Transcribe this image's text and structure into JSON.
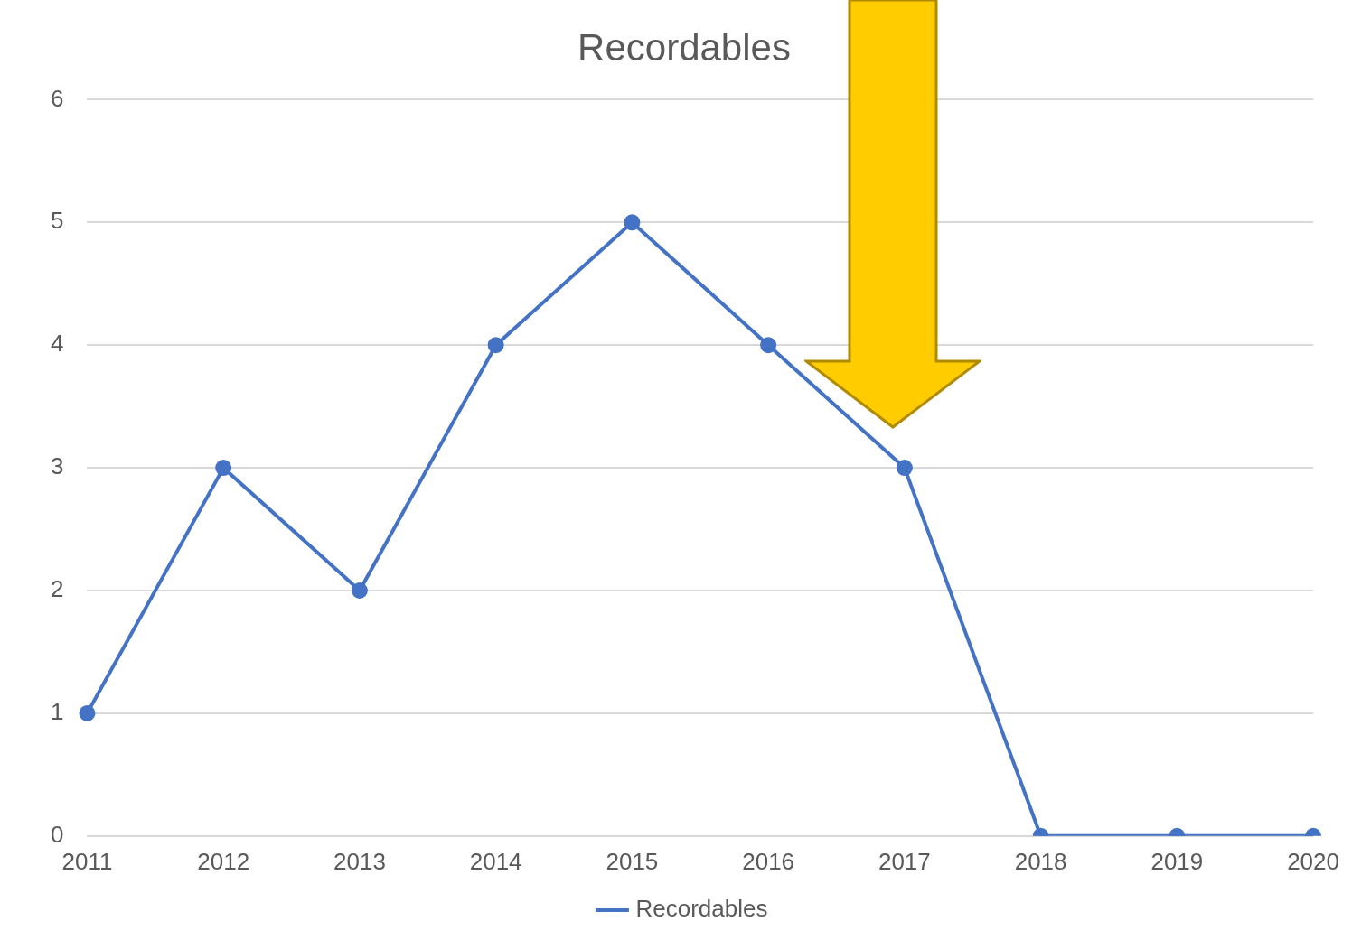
{
  "chart_data": {
    "type": "line",
    "title": "Recordables",
    "categories": [
      "2011",
      "2012",
      "2013",
      "2014",
      "2015",
      "2016",
      "2017",
      "2018",
      "2019",
      "2020"
    ],
    "series": [
      {
        "name": "Recordables",
        "color": "#4472c4",
        "values": [
          1,
          3,
          2,
          4,
          5,
          4,
          3,
          0,
          0,
          0
        ]
      }
    ],
    "ylim": [
      0,
      6
    ],
    "yticks": [
      0,
      1,
      2,
      3,
      4,
      5,
      6
    ],
    "grid": "y",
    "legend": "bottom",
    "marker": "circle",
    "line_style": "solid"
  }
}
